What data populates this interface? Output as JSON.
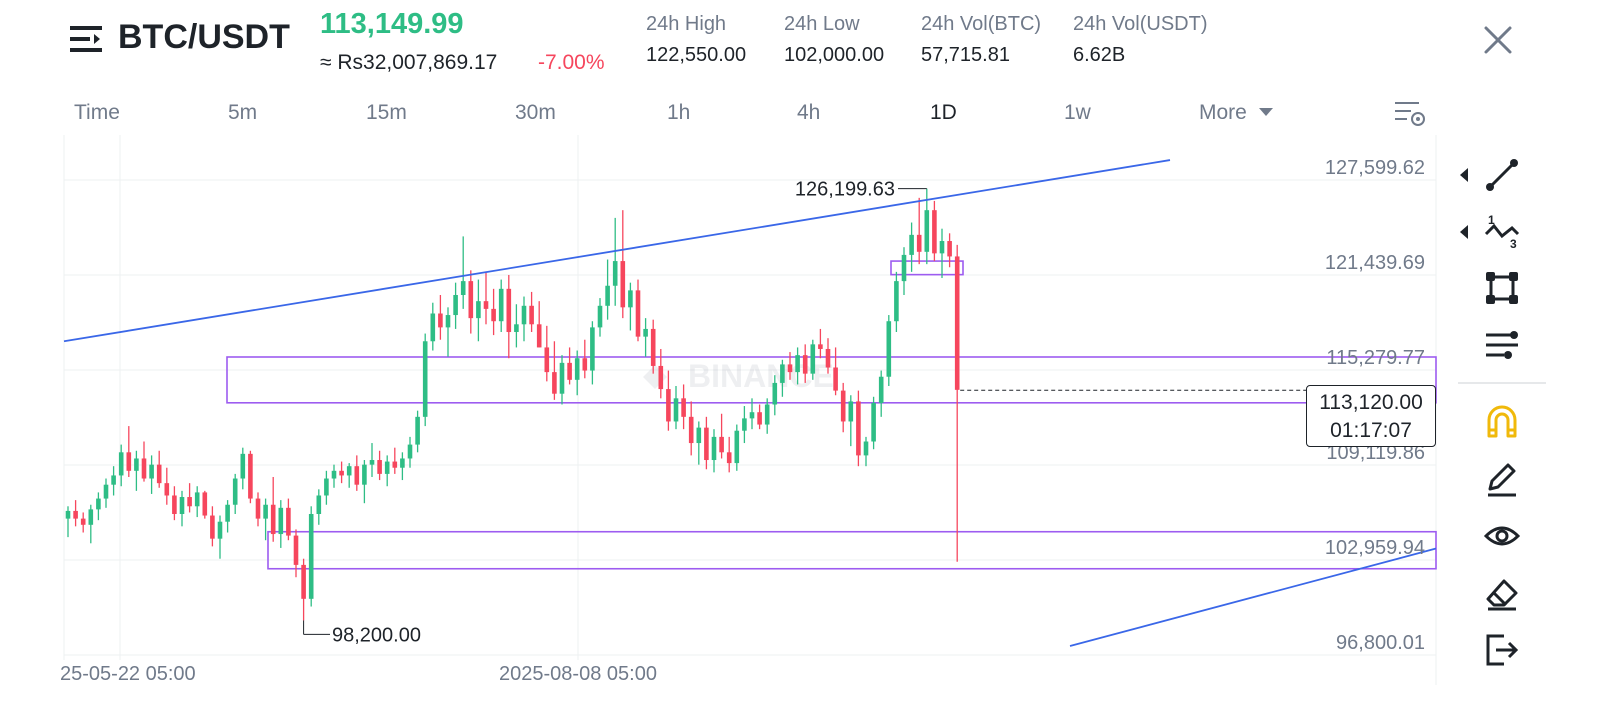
{
  "header": {
    "pair": "BTC/USDT",
    "last_price": "113,149.99",
    "approx_price": "≈ Rs32,007,869.17",
    "change": "-7.00%",
    "stats": [
      {
        "label": "24h High",
        "value": "122,550.00"
      },
      {
        "label": "24h Low",
        "value": "102,000.00"
      },
      {
        "label": "24h Vol(BTC)",
        "value": "57,715.81"
      },
      {
        "label": "24h Vol(USDT)",
        "value": "6.62B"
      }
    ]
  },
  "timeframes": {
    "items": [
      "Time",
      "5m",
      "15m",
      "30m",
      "1h",
      "4h",
      "1D",
      "1w"
    ],
    "active": "1D",
    "more_label": "More"
  },
  "colors": {
    "up": "#2ebd85",
    "down": "#f6465d",
    "trendline": "#3a67e8",
    "zone": "#9d5cf0",
    "toolbar_highlight": "#f0b90b"
  },
  "price_marker": {
    "price": "113,120.00",
    "countdown": "01:17:07"
  },
  "watermark": "BINANCE",
  "toolbar": {
    "icons": [
      "trend-line-icon",
      "fibonacci-icon",
      "rectangle-icon",
      "indicator-lines-icon",
      "magnet-icon",
      "pencil-icon",
      "eye-icon",
      "eraser-icon",
      "exit-icon"
    ],
    "highlight": "magnet-icon"
  },
  "chart_data": {
    "type": "candlestick",
    "y_axis_labels": [
      "127,599.62",
      "121,439.69",
      "115,279.77",
      "109,119.86",
      "102,959.94",
      "96,800.01"
    ],
    "ylim": [
      94500,
      128800
    ],
    "x_axis_labels": [
      "25-05-22 05:00",
      "2025-08-08 05:00"
    ],
    "annotations": {
      "high": "126,199.63",
      "low": "98,200.00"
    },
    "candles": [
      [
        104800,
        105600,
        103600,
        105300
      ],
      [
        105300,
        106000,
        104300,
        104800
      ],
      [
        104800,
        105200,
        103900,
        104400
      ],
      [
        104400,
        105700,
        103200,
        105400
      ],
      [
        105400,
        106500,
        104700,
        106100
      ],
      [
        106100,
        107400,
        105500,
        107000
      ],
      [
        107000,
        108200,
        106300,
        107600
      ],
      [
        107600,
        109600,
        106900,
        109100
      ],
      [
        109100,
        110800,
        107500,
        107900
      ],
      [
        107900,
        109200,
        106600,
        108700
      ],
      [
        108700,
        109800,
        107200,
        107400
      ],
      [
        107400,
        108900,
        106400,
        108300
      ],
      [
        108300,
        109200,
        106800,
        107100
      ],
      [
        107100,
        108100,
        105700,
        106300
      ],
      [
        106300,
        106900,
        104700,
        105100
      ],
      [
        105100,
        106600,
        104300,
        106200
      ],
      [
        106200,
        107100,
        105200,
        105600
      ],
      [
        105600,
        106900,
        104900,
        106500
      ],
      [
        106500,
        106600,
        104800,
        105000
      ],
      [
        105000,
        105600,
        103000,
        103500
      ],
      [
        103500,
        105000,
        102200,
        104600
      ],
      [
        104600,
        106000,
        103900,
        105700
      ],
      [
        105700,
        107700,
        105100,
        107400
      ],
      [
        107400,
        109400,
        106700,
        109000
      ],
      [
        109000,
        109200,
        105800,
        106100
      ],
      [
        106100,
        106500,
        104300,
        104800
      ],
      [
        104800,
        106100,
        103400,
        105700
      ],
      [
        105700,
        107500,
        103300,
        103800
      ],
      [
        103800,
        106000,
        102900,
        105500
      ],
      [
        105500,
        106100,
        103400,
        103700
      ],
      [
        103700,
        104100,
        101000,
        101800
      ],
      [
        101800,
        102200,
        98200,
        99600
      ],
      [
        99600,
        105600,
        99100,
        105100
      ],
      [
        105100,
        106700,
        104400,
        106300
      ],
      [
        106300,
        107900,
        105700,
        107400
      ],
      [
        107400,
        108300,
        106800,
        107900
      ],
      [
        107900,
        108500,
        107100,
        107600
      ],
      [
        107600,
        108400,
        106800,
        108200
      ],
      [
        108200,
        108900,
        106600,
        107000
      ],
      [
        107000,
        108600,
        105800,
        108300
      ],
      [
        108300,
        109700,
        107500,
        108600
      ],
      [
        108600,
        109200,
        107300,
        107700
      ],
      [
        107700,
        108900,
        106900,
        108500
      ],
      [
        108500,
        109400,
        107700,
        108100
      ],
      [
        108100,
        109100,
        107300,
        108700
      ],
      [
        108700,
        110100,
        108100,
        109600
      ],
      [
        109600,
        111800,
        109100,
        111400
      ],
      [
        111400,
        116800,
        110800,
        116300
      ],
      [
        116300,
        118800,
        115700,
        118100
      ],
      [
        118100,
        119300,
        116400,
        117200
      ],
      [
        117200,
        118500,
        115300,
        118000
      ],
      [
        118000,
        120100,
        117100,
        119300
      ],
      [
        119300,
        123100,
        118400,
        120200
      ],
      [
        120200,
        120900,
        116800,
        117800
      ],
      [
        117800,
        120300,
        116300,
        118900
      ],
      [
        118900,
        120800,
        117400,
        118400
      ],
      [
        118400,
        119700,
        116700,
        117600
      ],
      [
        117600,
        120300,
        116900,
        119700
      ],
      [
        119700,
        120600,
        115200,
        116900
      ],
      [
        116900,
        118700,
        115900,
        117400
      ],
      [
        117400,
        119200,
        116300,
        118600
      ],
      [
        118600,
        119500,
        116900,
        117400
      ],
      [
        117400,
        118900,
        115900,
        115900
      ],
      [
        115900,
        117300,
        113700,
        114300
      ],
      [
        114300,
        116300,
        112500,
        112900
      ],
      [
        112900,
        115400,
        112200,
        114900
      ],
      [
        114900,
        115900,
        113500,
        113800
      ],
      [
        113800,
        115700,
        112800,
        115200
      ],
      [
        115200,
        116400,
        113900,
        114400
      ],
      [
        114400,
        117600,
        113500,
        117200
      ],
      [
        117200,
        119100,
        116600,
        118600
      ],
      [
        118600,
        121600,
        117700,
        119900
      ],
      [
        119900,
        124300,
        118600,
        121500
      ],
      [
        121500,
        124800,
        117800,
        118500
      ],
      [
        118500,
        120100,
        117000,
        119600
      ],
      [
        119600,
        120300,
        116300,
        116600
      ],
      [
        116600,
        117800,
        115300,
        117100
      ],
      [
        117100,
        117700,
        114200,
        114700
      ],
      [
        114700,
        115800,
        112600,
        113200
      ],
      [
        113200,
        114400,
        110500,
        111100
      ],
      [
        111100,
        113400,
        110600,
        112600
      ],
      [
        112600,
        113500,
        110600,
        111400
      ],
      [
        111400,
        112400,
        108900,
        109700
      ],
      [
        109700,
        111100,
        108300,
        110700
      ],
      [
        110700,
        111400,
        108000,
        108600
      ],
      [
        108600,
        110600,
        107800,
        110100
      ],
      [
        110100,
        111600,
        108700,
        109100
      ],
      [
        109100,
        110100,
        107800,
        108400
      ],
      [
        108400,
        110900,
        107900,
        110500
      ],
      [
        110500,
        112100,
        109700,
        111300
      ],
      [
        111300,
        112600,
        110600,
        111700
      ],
      [
        111700,
        112200,
        110600,
        110900
      ],
      [
        110900,
        112600,
        110300,
        112200
      ],
      [
        112200,
        114100,
        111500,
        113600
      ],
      [
        113600,
        115100,
        112700,
        114800
      ],
      [
        114800,
        115600,
        113800,
        114300
      ],
      [
        114300,
        115900,
        113500,
        115400
      ],
      [
        115400,
        116100,
        113600,
        114200
      ],
      [
        114200,
        116400,
        113800,
        116100
      ],
      [
        116100,
        117100,
        115200,
        115800
      ],
      [
        115800,
        116500,
        114200,
        114600
      ],
      [
        114600,
        115900,
        112800,
        113100
      ],
      [
        113100,
        113600,
        110400,
        111100
      ],
      [
        111100,
        112800,
        109500,
        112400
      ],
      [
        112400,
        113100,
        108200,
        108900
      ],
      [
        108900,
        110100,
        108200,
        109800
      ],
      [
        109800,
        112700,
        109300,
        112300
      ],
      [
        112300,
        114400,
        111400,
        114000
      ],
      [
        114000,
        118000,
        113400,
        117600
      ],
      [
        117600,
        120800,
        116900,
        120200
      ],
      [
        120200,
        122400,
        119300,
        121900
      ],
      [
        121900,
        124000,
        120800,
        123200
      ],
      [
        123200,
        125600,
        121300,
        122100
      ],
      [
        122100,
        126200,
        121300,
        124800
      ],
      [
        124800,
        125400,
        121500,
        122000
      ],
      [
        122000,
        123600,
        120400,
        122800
      ],
      [
        122800,
        123300,
        121100,
        121800
      ],
      [
        121800,
        122550,
        102000,
        113150
      ]
    ]
  }
}
